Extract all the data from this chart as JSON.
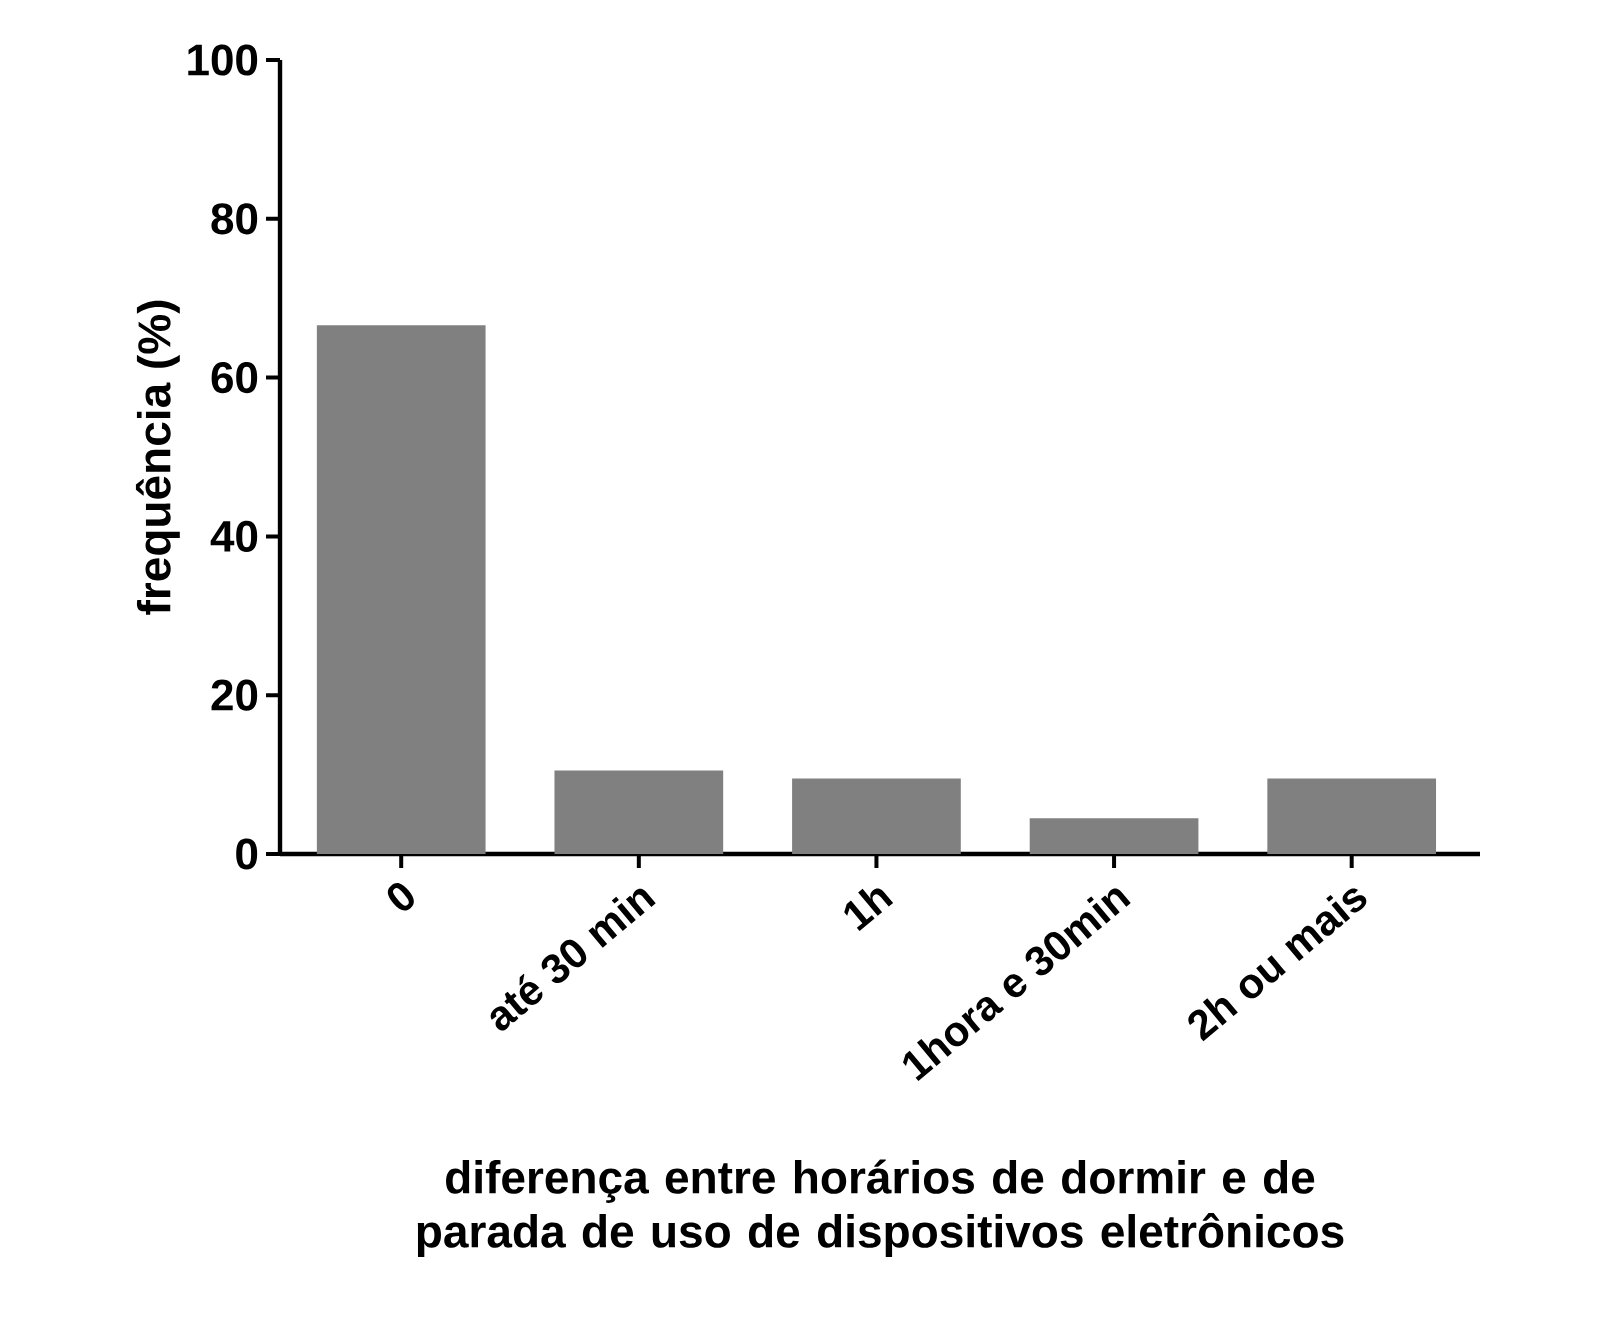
{
  "chart_data": {
    "type": "bar",
    "xlabel": "diferença entre horários de dormir e de parada de uso de dispositivos eletrônicos",
    "ylabel": "frequência (%)",
    "categories": [
      "0",
      "até 30 min",
      "1h",
      "1hora e 30min",
      "2h ou mais"
    ],
    "values": [
      66.6,
      10.5,
      9.5,
      4.5,
      9.5
    ],
    "color": "#808080",
    "ylim": [
      0,
      100
    ],
    "yticks": [
      0,
      20,
      40,
      60,
      80,
      100
    ]
  }
}
